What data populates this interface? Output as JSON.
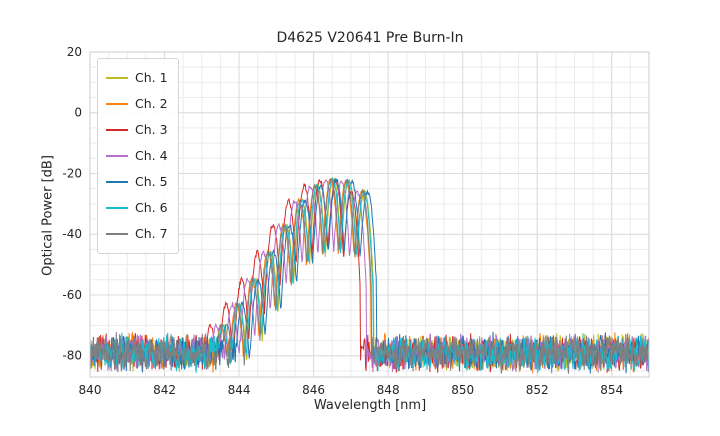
{
  "title": "D4625 V20641 Pre Burn-In",
  "chart_data": {
    "type": "line",
    "title": "D4625 V20641 Pre Burn-In",
    "xlabel": "Wavelength [nm]",
    "ylabel": "Optical Power [dB]",
    "xlim": [
      840,
      855
    ],
    "ylim": [
      -87,
      20
    ],
    "x_ticks": [
      840,
      842,
      844,
      846,
      848,
      850,
      852,
      854
    ],
    "y_ticks": [
      20,
      0,
      -20,
      -40,
      -60,
      -80
    ],
    "grid": {
      "major": true,
      "minor": true,
      "x_minor_step": 0.5,
      "y_minor_step": 5
    },
    "legend_position": "upper-left",
    "noise_floor": {
      "mean_db": -79,
      "spread_db": 7
    },
    "signal_envelope": {
      "description": "Multi-lobe laser spectrum; lobe peaks given as [wavelength_nm, power_db], parabolic lobes with valley depth below each peak",
      "lobe_spacing_nm": 0.42,
      "lobe_valley_depth_db": 24,
      "lobes": [
        [
          843.53,
          -70
        ],
        [
          843.95,
          -63
        ],
        [
          844.37,
          -55
        ],
        [
          844.79,
          -46
        ],
        [
          845.21,
          -37
        ],
        [
          845.63,
          -29
        ],
        [
          846.05,
          -24
        ],
        [
          846.47,
          -22
        ],
        [
          846.89,
          -22.5
        ],
        [
          847.31,
          -26
        ]
      ],
      "band_end_nm": 847.55
    },
    "series": [
      {
        "name": "Ch. 1",
        "color": "#bcbd22",
        "shift_nm": 0.06,
        "seed": 101
      },
      {
        "name": "Ch. 2",
        "color": "#ff7f0e",
        "shift_nm": -0.02,
        "seed": 202
      },
      {
        "name": "Ch. 3",
        "color": "#d62728",
        "shift_nm": -0.3,
        "seed": 303
      },
      {
        "name": "Ch. 4",
        "color": "#b46fc9",
        "shift_nm": -0.14,
        "seed": 404
      },
      {
        "name": "Ch. 5",
        "color": "#1f77b4",
        "shift_nm": 0.14,
        "seed": 505
      },
      {
        "name": "Ch. 6",
        "color": "#17becf",
        "shift_nm": 0.04,
        "seed": 606
      },
      {
        "name": "Ch. 7",
        "color": "#7f7f7f",
        "shift_nm": 0.0,
        "seed": 707
      }
    ]
  }
}
